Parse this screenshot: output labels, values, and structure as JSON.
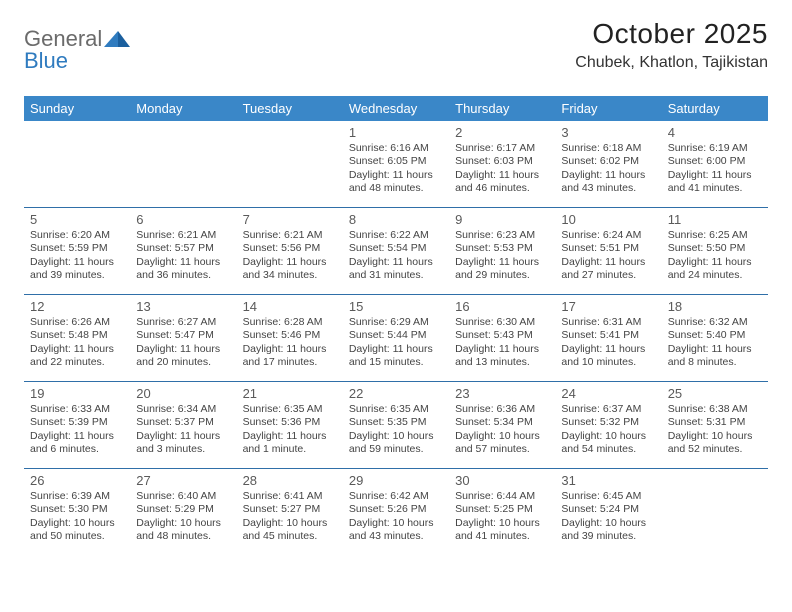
{
  "logo": {
    "general": "General",
    "blue": "Blue"
  },
  "colors": {
    "header_bg": "#3a87c8",
    "header_text": "#ffffff",
    "divider": "#2f6fa8",
    "body_text": "#444444",
    "daynum": "#5a5a5a",
    "title": "#222222",
    "logo_gray": "#6b6b6b",
    "logo_blue": "#2f7bbf",
    "page_bg": "#ffffff"
  },
  "title": "October 2025",
  "location": "Chubek, Khatlon, Tajikistan",
  "day_headers": [
    "Sunday",
    "Monday",
    "Tuesday",
    "Wednesday",
    "Thursday",
    "Friday",
    "Saturday"
  ],
  "weeks": [
    [
      null,
      null,
      null,
      {
        "d": "1",
        "sr": "Sunrise: 6:16 AM",
        "ss": "Sunset: 6:05 PM",
        "dl": "Daylight: 11 hours and 48 minutes."
      },
      {
        "d": "2",
        "sr": "Sunrise: 6:17 AM",
        "ss": "Sunset: 6:03 PM",
        "dl": "Daylight: 11 hours and 46 minutes."
      },
      {
        "d": "3",
        "sr": "Sunrise: 6:18 AM",
        "ss": "Sunset: 6:02 PM",
        "dl": "Daylight: 11 hours and 43 minutes."
      },
      {
        "d": "4",
        "sr": "Sunrise: 6:19 AM",
        "ss": "Sunset: 6:00 PM",
        "dl": "Daylight: 11 hours and 41 minutes."
      }
    ],
    [
      {
        "d": "5",
        "sr": "Sunrise: 6:20 AM",
        "ss": "Sunset: 5:59 PM",
        "dl": "Daylight: 11 hours and 39 minutes."
      },
      {
        "d": "6",
        "sr": "Sunrise: 6:21 AM",
        "ss": "Sunset: 5:57 PM",
        "dl": "Daylight: 11 hours and 36 minutes."
      },
      {
        "d": "7",
        "sr": "Sunrise: 6:21 AM",
        "ss": "Sunset: 5:56 PM",
        "dl": "Daylight: 11 hours and 34 minutes."
      },
      {
        "d": "8",
        "sr": "Sunrise: 6:22 AM",
        "ss": "Sunset: 5:54 PM",
        "dl": "Daylight: 11 hours and 31 minutes."
      },
      {
        "d": "9",
        "sr": "Sunrise: 6:23 AM",
        "ss": "Sunset: 5:53 PM",
        "dl": "Daylight: 11 hours and 29 minutes."
      },
      {
        "d": "10",
        "sr": "Sunrise: 6:24 AM",
        "ss": "Sunset: 5:51 PM",
        "dl": "Daylight: 11 hours and 27 minutes."
      },
      {
        "d": "11",
        "sr": "Sunrise: 6:25 AM",
        "ss": "Sunset: 5:50 PM",
        "dl": "Daylight: 11 hours and 24 minutes."
      }
    ],
    [
      {
        "d": "12",
        "sr": "Sunrise: 6:26 AM",
        "ss": "Sunset: 5:48 PM",
        "dl": "Daylight: 11 hours and 22 minutes."
      },
      {
        "d": "13",
        "sr": "Sunrise: 6:27 AM",
        "ss": "Sunset: 5:47 PM",
        "dl": "Daylight: 11 hours and 20 minutes."
      },
      {
        "d": "14",
        "sr": "Sunrise: 6:28 AM",
        "ss": "Sunset: 5:46 PM",
        "dl": "Daylight: 11 hours and 17 minutes."
      },
      {
        "d": "15",
        "sr": "Sunrise: 6:29 AM",
        "ss": "Sunset: 5:44 PM",
        "dl": "Daylight: 11 hours and 15 minutes."
      },
      {
        "d": "16",
        "sr": "Sunrise: 6:30 AM",
        "ss": "Sunset: 5:43 PM",
        "dl": "Daylight: 11 hours and 13 minutes."
      },
      {
        "d": "17",
        "sr": "Sunrise: 6:31 AM",
        "ss": "Sunset: 5:41 PM",
        "dl": "Daylight: 11 hours and 10 minutes."
      },
      {
        "d": "18",
        "sr": "Sunrise: 6:32 AM",
        "ss": "Sunset: 5:40 PM",
        "dl": "Daylight: 11 hours and 8 minutes."
      }
    ],
    [
      {
        "d": "19",
        "sr": "Sunrise: 6:33 AM",
        "ss": "Sunset: 5:39 PM",
        "dl": "Daylight: 11 hours and 6 minutes."
      },
      {
        "d": "20",
        "sr": "Sunrise: 6:34 AM",
        "ss": "Sunset: 5:37 PM",
        "dl": "Daylight: 11 hours and 3 minutes."
      },
      {
        "d": "21",
        "sr": "Sunrise: 6:35 AM",
        "ss": "Sunset: 5:36 PM",
        "dl": "Daylight: 11 hours and 1 minute."
      },
      {
        "d": "22",
        "sr": "Sunrise: 6:35 AM",
        "ss": "Sunset: 5:35 PM",
        "dl": "Daylight: 10 hours and 59 minutes."
      },
      {
        "d": "23",
        "sr": "Sunrise: 6:36 AM",
        "ss": "Sunset: 5:34 PM",
        "dl": "Daylight: 10 hours and 57 minutes."
      },
      {
        "d": "24",
        "sr": "Sunrise: 6:37 AM",
        "ss": "Sunset: 5:32 PM",
        "dl": "Daylight: 10 hours and 54 minutes."
      },
      {
        "d": "25",
        "sr": "Sunrise: 6:38 AM",
        "ss": "Sunset: 5:31 PM",
        "dl": "Daylight: 10 hours and 52 minutes."
      }
    ],
    [
      {
        "d": "26",
        "sr": "Sunrise: 6:39 AM",
        "ss": "Sunset: 5:30 PM",
        "dl": "Daylight: 10 hours and 50 minutes."
      },
      {
        "d": "27",
        "sr": "Sunrise: 6:40 AM",
        "ss": "Sunset: 5:29 PM",
        "dl": "Daylight: 10 hours and 48 minutes."
      },
      {
        "d": "28",
        "sr": "Sunrise: 6:41 AM",
        "ss": "Sunset: 5:27 PM",
        "dl": "Daylight: 10 hours and 45 minutes."
      },
      {
        "d": "29",
        "sr": "Sunrise: 6:42 AM",
        "ss": "Sunset: 5:26 PM",
        "dl": "Daylight: 10 hours and 43 minutes."
      },
      {
        "d": "30",
        "sr": "Sunrise: 6:44 AM",
        "ss": "Sunset: 5:25 PM",
        "dl": "Daylight: 10 hours and 41 minutes."
      },
      {
        "d": "31",
        "sr": "Sunrise: 6:45 AM",
        "ss": "Sunset: 5:24 PM",
        "dl": "Daylight: 10 hours and 39 minutes."
      },
      null
    ]
  ]
}
